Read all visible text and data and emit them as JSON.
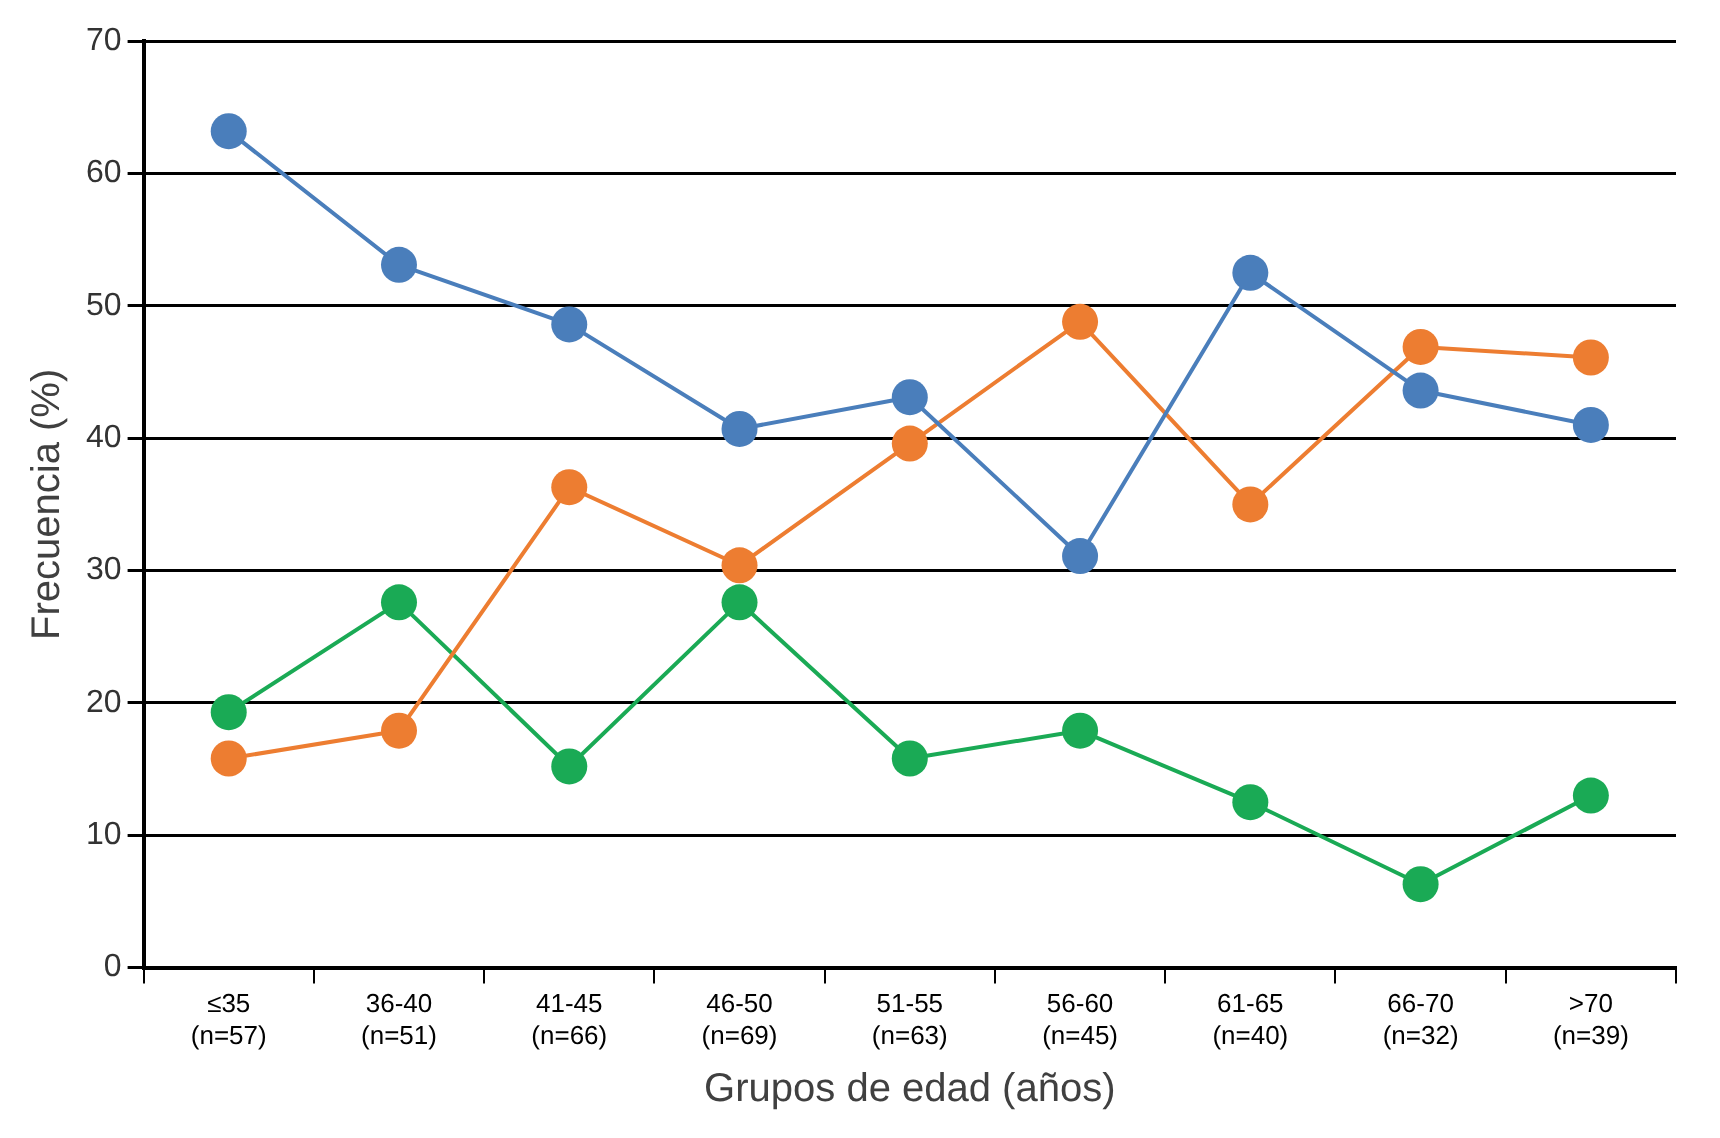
{
  "chart_data": {
    "type": "line",
    "xlabel": "Grupos de edad (años)",
    "ylabel": "Frecuencia (%)",
    "categories": [
      "≤35\n(n=57)",
      "36-40\n(n=51)",
      "41-45\n(n=66)",
      "46-50\n(n=69)",
      "51-55\n(n=63)",
      "56-60\n(n=45)",
      "61-65\n(n=40)",
      "66-70\n(n=32)",
      ">70\n(n=39)"
    ],
    "series": [
      {
        "color": "#4a7ebb",
        "values": [
          63.2,
          53.1,
          48.6,
          40.7,
          43.1,
          31.1,
          52.5,
          43.6,
          41
        ]
      },
      {
        "color": "#ed7d31",
        "values": [
          15.8,
          17.9,
          36.3,
          30.4,
          39.6,
          48.8,
          35,
          46.9,
          46.1
        ]
      },
      {
        "color": "#1aaa55",
        "values": [
          19.3,
          27.6,
          15.2,
          27.6,
          15.8,
          17.9,
          12.5,
          6.3,
          13
        ]
      }
    ],
    "ylim": [
      0,
      70
    ],
    "yticks": [
      0,
      10,
      20,
      30,
      40,
      50,
      60,
      70
    ],
    "grid": "y",
    "legend": false,
    "marker": "circle",
    "line_style": "solid"
  }
}
